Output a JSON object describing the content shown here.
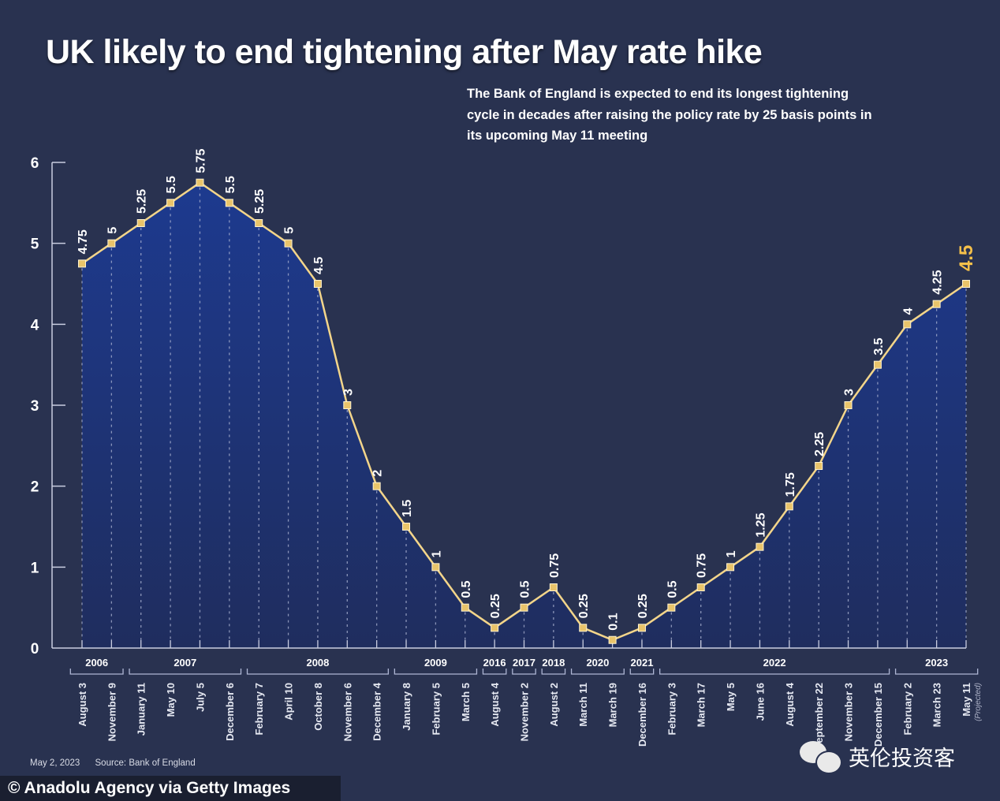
{
  "header": {
    "title": "UK likely to end tightening after May rate hike",
    "subtitle": "The Bank of England is expected to end its longest tightening cycle in decades after raising the policy rate by 25 basis points in its upcoming May 11 meeting"
  },
  "footer": {
    "date": "May 2, 2023",
    "source": "Source: Bank of England",
    "credit": "© Anadolu Agency via Getty Images",
    "watermark": "英伦投资客"
  },
  "colors": {
    "background": "#293250",
    "area_top": "#1d3a8f",
    "area_bottom": "#1f2d5e",
    "line": "#f3d58a",
    "marker": "#e9c46a",
    "highlight_label": "#f5c04a",
    "axis": "#c9cde0"
  },
  "chart_data": {
    "type": "area",
    "title": "UK likely to end tightening after May rate hike",
    "xlabel": "",
    "ylabel": "",
    "ylim": [
      0,
      6
    ],
    "yticks": [
      0,
      1,
      2,
      3,
      4,
      5,
      6
    ],
    "grid": "vertical dashed lines at each data point",
    "categories": [
      "August 3",
      "November 9",
      "January 11",
      "May 10",
      "July 5",
      "December 6",
      "February 7",
      "April 10",
      "October 8",
      "November 6",
      "December 4",
      "January 8",
      "February 5",
      "March 5",
      "August 4",
      "November 2",
      "August 2",
      "March 11",
      "March 19",
      "December 16",
      "February 3",
      "March 17",
      "May 5",
      "June 16",
      "August 4",
      "September 22",
      "November 3",
      "December 15",
      "February 2",
      "March 23",
      "May 11"
    ],
    "category_notes": {
      "30": "(Projected)"
    },
    "values": [
      4.75,
      5,
      5.25,
      5.5,
      5.75,
      5.5,
      5.25,
      5,
      4.5,
      3,
      2,
      1.5,
      1,
      0.5,
      0.25,
      0.5,
      0.75,
      0.25,
      0.1,
      0.25,
      0.5,
      0.75,
      1,
      1.25,
      1.75,
      2.25,
      3,
      3.5,
      4,
      4.25,
      4.5
    ],
    "data_labels": [
      "4.75",
      "5",
      "5.25",
      "5.5",
      "5.75",
      "5.5",
      "5.25",
      "5",
      "4.5",
      "3",
      "2",
      "1.5",
      "1",
      "0.5",
      "0.25",
      "0.5",
      "0.75",
      "0.25",
      "0.1",
      "0.25",
      "0.5",
      "0.75",
      "1",
      "1.25",
      "1.75",
      "2.25",
      "3",
      "3.5",
      "4",
      "4.25",
      "4.5"
    ],
    "highlight_index": 30,
    "year_groups": [
      {
        "year": "2006",
        "start": 0,
        "end": 1
      },
      {
        "year": "2007",
        "start": 2,
        "end": 5
      },
      {
        "year": "2008",
        "start": 6,
        "end": 10
      },
      {
        "year": "2009",
        "start": 11,
        "end": 13
      },
      {
        "year": "2016",
        "start": 14,
        "end": 14
      },
      {
        "year": "2017",
        "start": 15,
        "end": 15
      },
      {
        "year": "2018",
        "start": 16,
        "end": 16
      },
      {
        "year": "2020",
        "start": 17,
        "end": 18
      },
      {
        "year": "2021",
        "start": 19,
        "end": 19
      },
      {
        "year": "2022",
        "start": 20,
        "end": 27
      },
      {
        "year": "2023",
        "start": 28,
        "end": 30
      }
    ]
  }
}
